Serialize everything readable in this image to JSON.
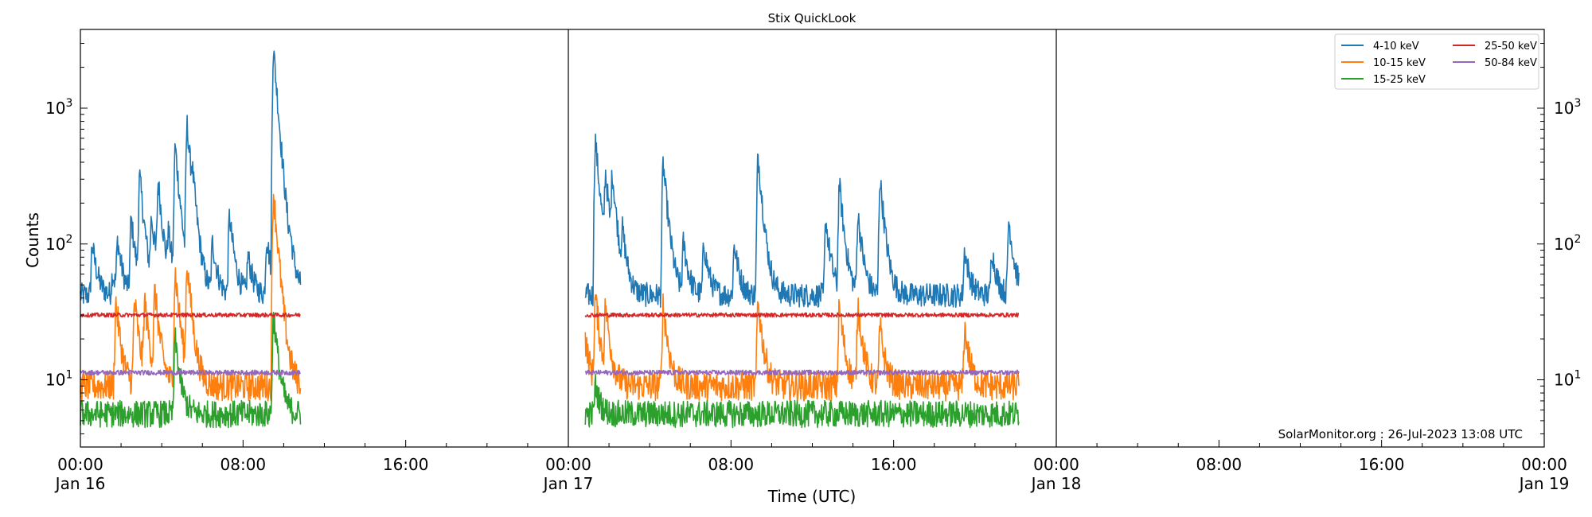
{
  "chart_data": {
    "type": "line",
    "title": "Stix QuickLook",
    "xlabel": "Time (UTC)",
    "ylabel": "Counts",
    "yscale": "log",
    "ylim": [
      3.2,
      3800
    ],
    "xlim": [
      "2023-01-16 00:00",
      "2023-01-19 00:00"
    ],
    "x_ticks": [
      {
        "t": 0,
        "line1": "00:00",
        "line2": "Jan 16"
      },
      {
        "t": 8,
        "line1": "08:00",
        "line2": ""
      },
      {
        "t": 16,
        "line1": "16:00",
        "line2": ""
      },
      {
        "t": 24,
        "line1": "00:00",
        "line2": "Jan 17"
      },
      {
        "t": 32,
        "line1": "08:00",
        "line2": ""
      },
      {
        "t": 40,
        "line1": "16:00",
        "line2": ""
      },
      {
        "t": 48,
        "line1": "00:00",
        "line2": "Jan 18"
      },
      {
        "t": 56,
        "line1": "08:00",
        "line2": ""
      },
      {
        "t": 64,
        "line1": "16:00",
        "line2": ""
      },
      {
        "t": 72,
        "line1": "00:00",
        "line2": "Jan 19"
      }
    ],
    "y_ticks": [
      {
        "value": 10,
        "base": "10",
        "exp": "1"
      },
      {
        "value": 100,
        "base": "10",
        "exp": "2"
      },
      {
        "value": 1000,
        "base": "10",
        "exp": "3"
      }
    ],
    "day_boundaries": [
      "2023-01-17 00:00",
      "2023-01-18 00:00"
    ],
    "legend_position": "top-right",
    "grid": false,
    "segments": [
      {
        "start": "2023-01-16 00:00",
        "end": "2023-01-16 10:50"
      },
      {
        "start": "2023-01-17 00:50",
        "end": "2023-01-17 22:10"
      }
    ],
    "series": [
      {
        "name": "4-10 keV",
        "color": "#1f77b4",
        "baseline": 42,
        "peaks": [
          {
            "time": "2023-01-16 00:35",
            "peak": 100
          },
          {
            "time": "2023-01-16 01:35",
            "peak": 60
          },
          {
            "time": "2023-01-16 01:50",
            "peak": 100
          },
          {
            "time": "2023-01-16 02:30",
            "peak": 150
          },
          {
            "time": "2023-01-16 02:55",
            "peak": 300
          },
          {
            "time": "2023-01-16 03:30",
            "peak": 140
          },
          {
            "time": "2023-01-16 03:50",
            "peak": 260
          },
          {
            "time": "2023-01-16 04:20",
            "peak": 100
          },
          {
            "time": "2023-01-16 04:40",
            "peak": 510
          },
          {
            "time": "2023-01-16 05:15",
            "peak": 720
          },
          {
            "time": "2023-01-16 05:30",
            "peak": 150
          },
          {
            "time": "2023-01-16 06:30",
            "peak": 100
          },
          {
            "time": "2023-01-16 07:20",
            "peak": 160
          },
          {
            "time": "2023-01-16 08:15",
            "peak": 80
          },
          {
            "time": "2023-01-16 09:10",
            "peak": 110
          },
          {
            "time": "2023-01-16 09:30",
            "peak": 2700
          },
          {
            "time": "2023-01-16 10:20",
            "peak": 60
          },
          {
            "time": "2023-01-17 01:20",
            "peak": 580
          },
          {
            "time": "2023-01-17 01:50",
            "peak": 280
          },
          {
            "time": "2023-01-17 02:10",
            "peak": 270
          },
          {
            "time": "2023-01-17 02:40",
            "peak": 100
          },
          {
            "time": "2023-01-17 04:40",
            "peak": 390
          },
          {
            "time": "2023-01-17 05:40",
            "peak": 100
          },
          {
            "time": "2023-01-17 06:40",
            "peak": 100
          },
          {
            "time": "2023-01-17 08:10",
            "peak": 100
          },
          {
            "time": "2023-01-17 09:20",
            "peak": 450
          },
          {
            "time": "2023-01-17 12:40",
            "peak": 150
          },
          {
            "time": "2023-01-17 13:20",
            "peak": 270
          },
          {
            "time": "2023-01-17 14:15",
            "peak": 160
          },
          {
            "time": "2023-01-17 15:20",
            "peak": 300
          },
          {
            "time": "2023-01-17 19:30",
            "peak": 90
          },
          {
            "time": "2023-01-17 20:50",
            "peak": 90
          },
          {
            "time": "2023-01-17 21:40",
            "peak": 150
          }
        ]
      },
      {
        "name": "10-15 keV",
        "color": "#ff7f0e",
        "baseline": 9,
        "peaks": [
          {
            "time": "2023-01-16 01:45",
            "peak": 37
          },
          {
            "time": "2023-01-16 02:40",
            "peak": 38
          },
          {
            "time": "2023-01-16 03:10",
            "peak": 35
          },
          {
            "time": "2023-01-16 03:40",
            "peak": 42
          },
          {
            "time": "2023-01-16 04:40",
            "peak": 62
          },
          {
            "time": "2023-01-16 05:15",
            "peak": 68
          },
          {
            "time": "2023-01-16 09:30",
            "peak": 240
          },
          {
            "time": "2023-01-17 00:50",
            "peak": 20
          },
          {
            "time": "2023-01-17 01:20",
            "peak": 40
          },
          {
            "time": "2023-01-17 01:50",
            "peak": 32
          },
          {
            "time": "2023-01-17 04:40",
            "peak": 36
          },
          {
            "time": "2023-01-17 09:20",
            "peak": 38
          },
          {
            "time": "2023-01-17 13:20",
            "peak": 35
          },
          {
            "time": "2023-01-17 14:15",
            "peak": 35
          },
          {
            "time": "2023-01-17 15:20",
            "peak": 24
          },
          {
            "time": "2023-01-17 19:30",
            "peak": 24
          }
        ]
      },
      {
        "name": "15-25 keV",
        "color": "#2ca02c",
        "baseline": 5.6,
        "peaks": [
          {
            "time": "2023-01-16 04:40",
            "peak": 20
          },
          {
            "time": "2023-01-16 09:30",
            "peak": 30
          },
          {
            "time": "2023-01-17 01:20",
            "peak": 9
          }
        ]
      },
      {
        "name": "25-50 keV",
        "color": "#d62728",
        "baseline": 30,
        "peaks": []
      },
      {
        "name": "50-84 keV",
        "color": "#9467bd",
        "baseline": 11.3,
        "peaks": []
      }
    ]
  },
  "footer": {
    "credit": "SolarMonitor.org : 26-Jul-2023 13:08 UTC"
  }
}
